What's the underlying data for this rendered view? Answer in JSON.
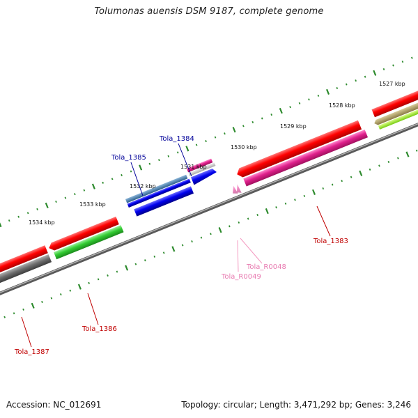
{
  "title": "Tolumonas auensis DSM 9187, complete genome",
  "footer": {
    "accession": "Accession: NC_012691",
    "topology": "Topology: circular; Length: 3,471,292 bp; Genes: 3,246"
  },
  "kbp_labels": [
    "1527 kbp",
    "1528 kbp",
    "1529 kbp",
    "1530 kbp",
    "1531 kbp",
    "1532 kbp",
    "1533 kbp",
    "1534 kbp"
  ],
  "gene_labels": {
    "tola_1384": "Tola_1384",
    "tola_1385": "Tola_1385",
    "tola_1383": "Tola_1383",
    "tola_r0048": "Tola_R0048",
    "tola_r0049": "Tola_R0049",
    "tola_1386": "Tola_1386",
    "tola_1387": "Tola_1387"
  },
  "colors": {
    "backbone": "#7f7f7f",
    "scale": "#2e8b2e",
    "red_gene": "#ee1111",
    "blue_gene": "#1010ee",
    "pink_gene": "#e8208c",
    "green_gene": "#33cc33",
    "rna": "#f49ac1",
    "label_red": "#c00000",
    "label_blue": "#000099",
    "label_pink": "#e87ab0"
  }
}
